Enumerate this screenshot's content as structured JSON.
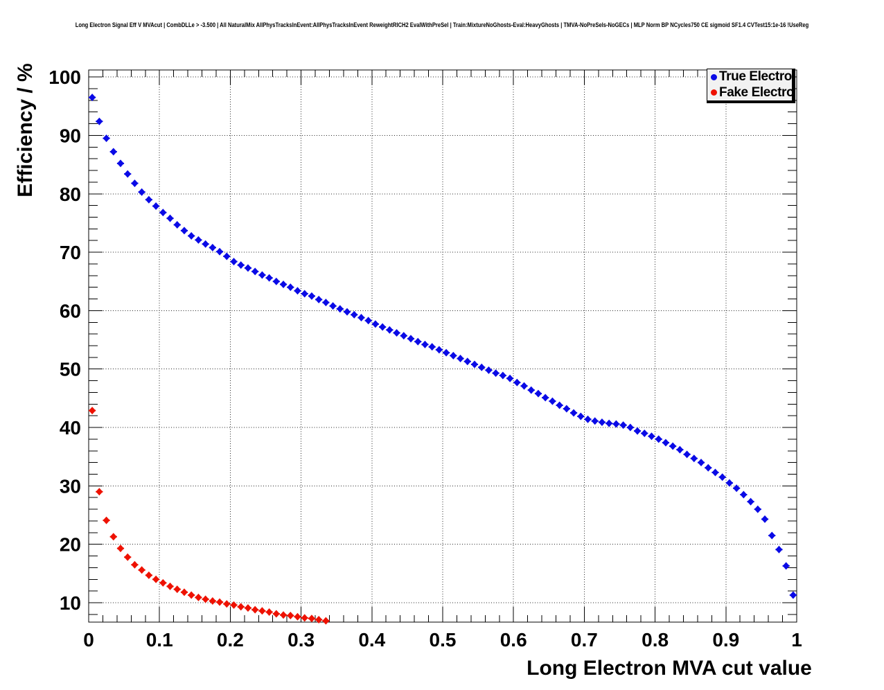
{
  "title": "Long Electron Signal Eff V MVAcut | CombDLLe > -3.500 | All NaturalMix AllPhysTracksInEvent:AllPhysTracksInEvent ReweightRICH2 EvalWithPreSel | Train:MixtureNoGhosts-Eval:HeavyGhosts | TMVA-NoPreSels-NoGECs | MLP Norm BP NCycles750 CE sigmoid SF1.4 CVTest15:1e-16 !UseReg",
  "chart_data": {
    "type": "scatter",
    "title": "Long Electron Signal Eff V MVAcut",
    "xlabel": "Long Electron MVA cut value",
    "ylabel": "Efficiency / %",
    "xlim": [
      0,
      1
    ],
    "ylim": [
      6.68,
      101.2
    ],
    "grid": true,
    "grid_style": "dotted",
    "x_ticks": [
      [
        0,
        "0"
      ],
      [
        0.1,
        "0.1"
      ],
      [
        0.2,
        "0.2"
      ],
      [
        0.3,
        "0.3"
      ],
      [
        0.4,
        "0.4"
      ],
      [
        0.5,
        "0.5"
      ],
      [
        0.6,
        "0.6"
      ],
      [
        0.7,
        "0.7"
      ],
      [
        0.8,
        "0.8"
      ],
      [
        0.9,
        "0.9"
      ],
      [
        1,
        "1"
      ]
    ],
    "y_ticks": [
      [
        10,
        "10"
      ],
      [
        20,
        "20"
      ],
      [
        30,
        "30"
      ],
      [
        40,
        "40"
      ],
      [
        50,
        "50"
      ],
      [
        60,
        "60"
      ],
      [
        70,
        "70"
      ],
      [
        80,
        "80"
      ],
      [
        90,
        "90"
      ],
      [
        100,
        "100"
      ]
    ],
    "x_minor_step": 0.02,
    "y_minor_step": 2,
    "legend": {
      "position": "top-right",
      "entries": [
        {
          "label": "True Electron",
          "color": "#0a0ae6"
        },
        {
          "label": "Fake Electron",
          "color": "#ee1100"
        }
      ]
    },
    "series": [
      {
        "name": "True Electron",
        "color": "#0a0ae6",
        "marker": "diamond",
        "x_error": 0.005,
        "points": [
          [
            0.005,
            96.5
          ],
          [
            0.015,
            92.4
          ],
          [
            0.025,
            89.5
          ],
          [
            0.035,
            87.2
          ],
          [
            0.045,
            85.2
          ],
          [
            0.055,
            83.4
          ],
          [
            0.065,
            81.8
          ],
          [
            0.075,
            80.3
          ],
          [
            0.085,
            79.0
          ],
          [
            0.095,
            77.9
          ],
          [
            0.105,
            76.8
          ],
          [
            0.115,
            75.8
          ],
          [
            0.125,
            74.7
          ],
          [
            0.135,
            73.7
          ],
          [
            0.145,
            72.8
          ],
          [
            0.155,
            72.1
          ],
          [
            0.165,
            71.4
          ],
          [
            0.175,
            70.8
          ],
          [
            0.185,
            70.1
          ],
          [
            0.195,
            69.3
          ],
          [
            0.205,
            68.4
          ],
          [
            0.215,
            67.8
          ],
          [
            0.225,
            67.3
          ],
          [
            0.235,
            66.7
          ],
          [
            0.245,
            66.1
          ],
          [
            0.255,
            65.6
          ],
          [
            0.265,
            65.0
          ],
          [
            0.275,
            64.5
          ],
          [
            0.285,
            64.0
          ],
          [
            0.295,
            63.4
          ],
          [
            0.305,
            62.9
          ],
          [
            0.315,
            62.5
          ],
          [
            0.325,
            61.9
          ],
          [
            0.335,
            61.4
          ],
          [
            0.345,
            60.8
          ],
          [
            0.355,
            60.3
          ],
          [
            0.365,
            59.8
          ],
          [
            0.375,
            59.3
          ],
          [
            0.385,
            58.8
          ],
          [
            0.395,
            58.3
          ],
          [
            0.405,
            57.7
          ],
          [
            0.415,
            57.2
          ],
          [
            0.425,
            56.7
          ],
          [
            0.435,
            56.2
          ],
          [
            0.445,
            55.7
          ],
          [
            0.455,
            55.2
          ],
          [
            0.465,
            54.7
          ],
          [
            0.475,
            54.2
          ],
          [
            0.485,
            53.8
          ],
          [
            0.495,
            53.3
          ],
          [
            0.505,
            52.8
          ],
          [
            0.515,
            52.3
          ],
          [
            0.525,
            51.8
          ],
          [
            0.535,
            51.3
          ],
          [
            0.545,
            50.8
          ],
          [
            0.555,
            50.3
          ],
          [
            0.565,
            49.8
          ],
          [
            0.575,
            49.3
          ],
          [
            0.585,
            48.9
          ],
          [
            0.595,
            48.4
          ],
          [
            0.605,
            47.7
          ],
          [
            0.615,
            47.1
          ],
          [
            0.625,
            46.4
          ],
          [
            0.635,
            45.8
          ],
          [
            0.645,
            45.1
          ],
          [
            0.655,
            44.5
          ],
          [
            0.665,
            43.8
          ],
          [
            0.675,
            43.2
          ],
          [
            0.685,
            42.5
          ],
          [
            0.695,
            41.9
          ],
          [
            0.705,
            41.4
          ],
          [
            0.715,
            41.1
          ],
          [
            0.725,
            40.9
          ],
          [
            0.735,
            40.7
          ],
          [
            0.745,
            40.6
          ],
          [
            0.755,
            40.4
          ],
          [
            0.765,
            40.0
          ],
          [
            0.775,
            39.4
          ],
          [
            0.785,
            39.0
          ],
          [
            0.795,
            38.5
          ],
          [
            0.805,
            38.0
          ],
          [
            0.815,
            37.4
          ],
          [
            0.825,
            36.8
          ],
          [
            0.835,
            36.2
          ],
          [
            0.845,
            35.4
          ],
          [
            0.855,
            34.7
          ],
          [
            0.865,
            34.0
          ],
          [
            0.875,
            33.1
          ],
          [
            0.885,
            32.3
          ],
          [
            0.895,
            31.5
          ],
          [
            0.905,
            30.5
          ],
          [
            0.915,
            29.6
          ],
          [
            0.925,
            28.5
          ],
          [
            0.935,
            27.3
          ],
          [
            0.945,
            26.0
          ],
          [
            0.955,
            24.3
          ],
          [
            0.965,
            21.5
          ],
          [
            0.975,
            19.1
          ],
          [
            0.985,
            16.3
          ],
          [
            0.995,
            11.3
          ]
        ]
      },
      {
        "name": "Fake Electron",
        "color": "#ee1100",
        "marker": "diamond",
        "x_error": 0.005,
        "points": [
          [
            0.005,
            42.9
          ],
          [
            0.015,
            29.0
          ],
          [
            0.025,
            24.1
          ],
          [
            0.035,
            21.3
          ],
          [
            0.045,
            19.3
          ],
          [
            0.055,
            17.8
          ],
          [
            0.065,
            16.5
          ],
          [
            0.075,
            15.6
          ],
          [
            0.085,
            14.7
          ],
          [
            0.095,
            14.0
          ],
          [
            0.105,
            13.4
          ],
          [
            0.115,
            12.8
          ],
          [
            0.125,
            12.3
          ],
          [
            0.135,
            11.8
          ],
          [
            0.145,
            11.3
          ],
          [
            0.155,
            10.9
          ],
          [
            0.165,
            10.6
          ],
          [
            0.175,
            10.3
          ],
          [
            0.185,
            10.1
          ],
          [
            0.195,
            9.8
          ],
          [
            0.205,
            9.6
          ],
          [
            0.215,
            9.3
          ],
          [
            0.225,
            9.1
          ],
          [
            0.235,
            8.8
          ],
          [
            0.245,
            8.6
          ],
          [
            0.255,
            8.4
          ],
          [
            0.265,
            8.1
          ],
          [
            0.275,
            7.9
          ],
          [
            0.285,
            7.8
          ],
          [
            0.295,
            7.6
          ],
          [
            0.305,
            7.4
          ],
          [
            0.315,
            7.3
          ],
          [
            0.325,
            7.1
          ],
          [
            0.335,
            6.9
          ]
        ]
      }
    ]
  }
}
